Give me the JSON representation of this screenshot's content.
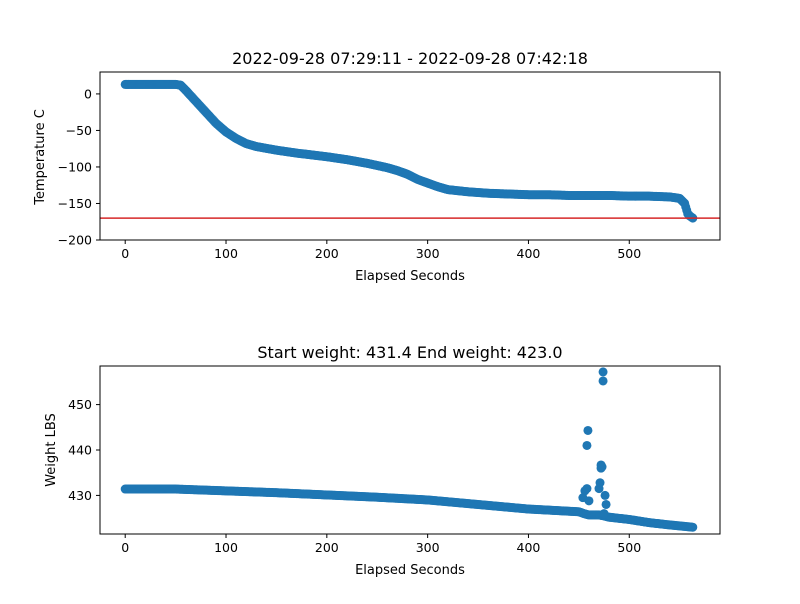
{
  "chart_data": [
    {
      "type": "scatter",
      "title": "2022-09-28 07:29:11 - 2022-09-28 07:42:18",
      "xlabel": "Elapsed Seconds",
      "ylabel": "Temperature C",
      "xlim": [
        -25,
        590
      ],
      "ylim": [
        -200,
        30
      ],
      "xticks": [
        0,
        100,
        200,
        300,
        400,
        500
      ],
      "yticks": [
        0,
        -50,
        -100,
        -150,
        -200
      ],
      "ytick_labels": [
        "0",
        "−50",
        "−100",
        "−150",
        "−200"
      ],
      "grid": false,
      "point_color": "#1f77b4",
      "reference_line": {
        "y": -170,
        "color": "#d62728"
      },
      "series": [
        {
          "x": [
            0,
            10,
            20,
            30,
            40,
            50,
            55,
            60,
            70,
            80,
            90,
            100,
            110,
            120,
            130,
            150,
            170,
            200,
            220,
            240,
            260,
            270,
            280,
            290,
            300,
            310,
            320,
            340,
            360,
            380,
            400,
            420,
            440,
            460,
            480,
            500,
            520,
            540,
            550,
            555,
            558,
            560,
            563
          ],
          "y": [
            13,
            13,
            13,
            13,
            13,
            13,
            12,
            5,
            -10,
            -25,
            -40,
            -52,
            -61,
            -68,
            -72,
            -77,
            -81,
            -86,
            -90,
            -95,
            -101,
            -105,
            -110,
            -117,
            -122,
            -127,
            -131,
            -134,
            -136,
            -137,
            -138,
            -138,
            -139,
            -139,
            -139,
            -140,
            -140,
            -141,
            -143,
            -150,
            -164,
            -167,
            -170
          ]
        }
      ]
    },
    {
      "type": "scatter",
      "title": "Start weight: 431.4 End weight: 423.0",
      "xlabel": "Elapsed Seconds",
      "ylabel": "Weight LBS",
      "xlim": [
        -25,
        590
      ],
      "ylim": [
        421.5,
        458.5
      ],
      "xticks": [
        0,
        100,
        200,
        300,
        400,
        500
      ],
      "yticks": [
        430,
        440,
        450
      ],
      "grid": false,
      "point_color": "#1f77b4",
      "series": [
        {
          "x": [
            0,
            50,
            100,
            150,
            200,
            250,
            300,
            350,
            400,
            450,
            455,
            458,
            460,
            462,
            465,
            470,
            472,
            475,
            478,
            480,
            500,
            520,
            540,
            563
          ],
          "y": [
            431.4,
            431.4,
            431.0,
            430.6,
            430.1,
            429.6,
            429.0,
            428.0,
            427.0,
            426.4,
            426.0,
            425.8,
            425.7,
            425.7,
            425.7,
            425.7,
            425.6,
            425.5,
            425.3,
            425.2,
            424.7,
            424.0,
            423.5,
            423.0
          ]
        },
        {
          "x": [
            454,
            456,
            458,
            458,
            459,
            460,
            470,
            471,
            472,
            472,
            473,
            474,
            474,
            475,
            476,
            477
          ],
          "y": [
            429.5,
            431.0,
            431.5,
            441.0,
            444.3,
            428.8,
            431.5,
            432.8,
            436.7,
            436.0,
            436.3,
            455.2,
            457.2,
            426.0,
            430.0,
            428.0
          ]
        }
      ]
    }
  ]
}
